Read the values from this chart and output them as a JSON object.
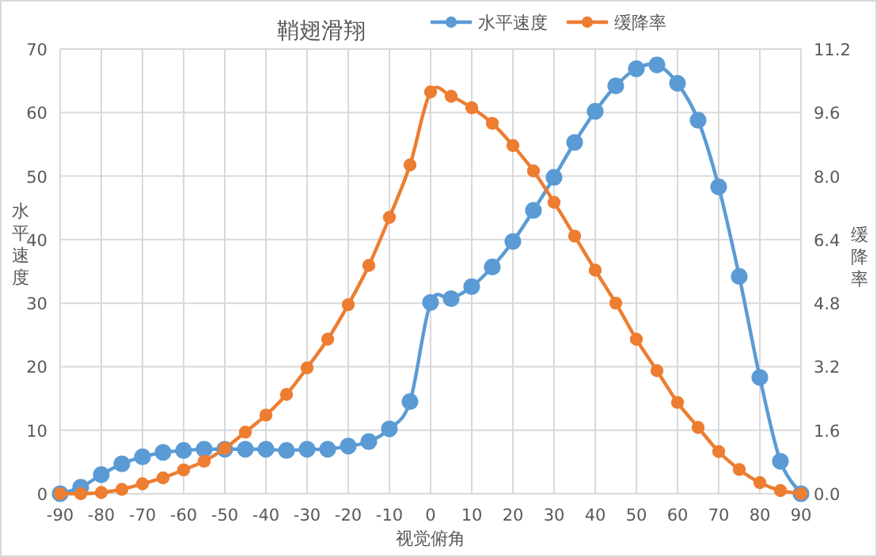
{
  "chart_data": {
    "type": "line",
    "title": "鞘翅滑翔",
    "xlabel": "视觉俯角",
    "ylabel": "水平速度",
    "y2label": "缓降率",
    "x": [
      -90,
      -85,
      -80,
      -75,
      -70,
      -65,
      -60,
      -55,
      -50,
      -45,
      -40,
      -35,
      -30,
      -25,
      -20,
      -15,
      -10,
      -5,
      0,
      5,
      10,
      15,
      20,
      25,
      30,
      35,
      40,
      45,
      50,
      55,
      60,
      65,
      70,
      75,
      80,
      85,
      90
    ],
    "series": [
      {
        "name": "水平速度",
        "color": "#5b9bd5",
        "values": [
          0,
          1,
          3,
          4.7,
          5.8,
          6.5,
          6.8,
          7,
          7,
          7,
          7,
          6.8,
          7,
          7,
          7.5,
          8.2,
          10.2,
          14.5,
          30.1,
          30.7,
          32.6,
          35.7,
          39.7,
          44.6,
          49.8,
          55.3,
          60.2,
          64.2,
          66.9,
          67.5,
          64.6,
          58.8,
          48.3,
          34.2,
          18.3,
          5.1,
          0
        ]
      },
      {
        "name": "缓降率",
        "color": "#ed7d31",
        "axis": "y2",
        "values": [
          0,
          0,
          0.03,
          0.11,
          0.25,
          0.4,
          0.6,
          0.82,
          1.14,
          1.55,
          1.98,
          2.5,
          3.17,
          3.89,
          4.76,
          5.75,
          6.96,
          8.28,
          10.12,
          10.01,
          9.72,
          9.33,
          8.77,
          8.13,
          7.34,
          6.49,
          5.63,
          4.8,
          3.89,
          3.1,
          2.3,
          1.67,
          1.06,
          0.61,
          0.28,
          0.08,
          0
        ]
      }
    ],
    "xlim": [
      -90,
      90
    ],
    "xticks": [
      -90,
      -80,
      -70,
      -60,
      -50,
      -40,
      -30,
      -20,
      -10,
      0,
      10,
      20,
      30,
      40,
      50,
      60,
      70,
      80,
      90
    ],
    "ylim": [
      0,
      70
    ],
    "yticks": [
      0,
      10,
      20,
      30,
      40,
      50,
      60,
      70
    ],
    "y2lim": [
      0,
      11.2
    ],
    "y2ticks": [
      {
        "value": 0,
        "label": "0.0"
      },
      {
        "value": 1.6,
        "label": "1.6"
      },
      {
        "value": 3.2,
        "label": "3.2"
      },
      {
        "value": 4.8,
        "label": "4.8"
      },
      {
        "value": 6.4,
        "label": "6.4"
      },
      {
        "value": 8,
        "label": "8.0"
      },
      {
        "value": 9.6,
        "label": "9.6"
      },
      {
        "value": 11.2,
        "label": "11.2"
      }
    ],
    "grid": true,
    "legend": "top right",
    "marker": "circle",
    "line_style": "solid"
  }
}
